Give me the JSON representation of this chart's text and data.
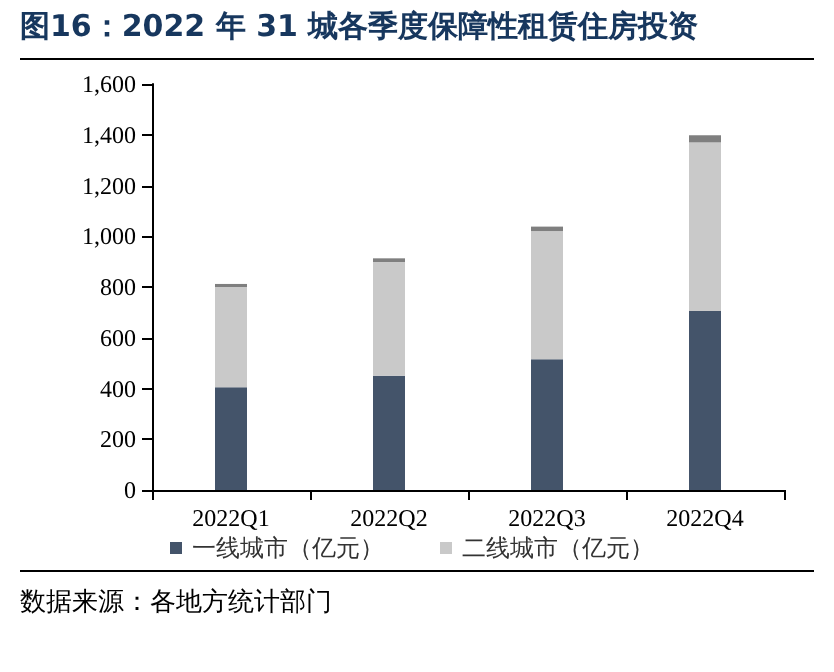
{
  "chart_data": {
    "type": "bar",
    "title": "图16：2022 年 31 城各季度保障性租赁住房投资",
    "categories": [
      "2022Q1",
      "2022Q2",
      "2022Q3",
      "2022Q4"
    ],
    "series": [
      {
        "name": "一线城市（亿元）",
        "color": "#44546a",
        "values": [
          405,
          450,
          515,
          705
        ]
      },
      {
        "name": "二线城市（亿元）",
        "color": "#c9c9c9",
        "values": [
          395,
          448,
          505,
          665
        ]
      },
      {
        "color": "#7f7f7f",
        "values": [
          12,
          15,
          18,
          28
        ]
      }
    ],
    "stacked": true,
    "ylim": [
      0,
      1600
    ],
    "yticks": [
      0,
      200,
      400,
      600,
      800,
      {
        "value": 1000,
        "label": "1,000"
      },
      {
        "value": 1200,
        "label": "1,200"
      },
      {
        "value": 1400,
        "label": "1,400"
      },
      {
        "value": 1600,
        "label": "1,600"
      }
    ],
    "grid": false,
    "legend": "bottom",
    "annotations": [
      "数据来源：各地方统计部门"
    ]
  }
}
